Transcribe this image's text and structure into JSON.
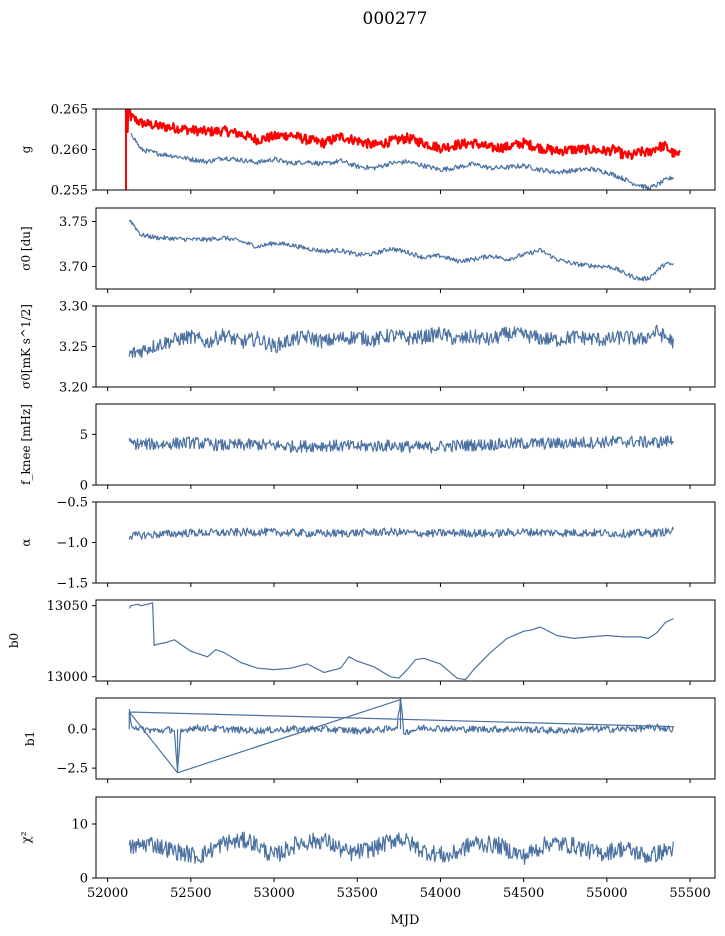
{
  "figure": {
    "title": "000277",
    "xlabel": "MJD"
  },
  "chart_data": [
    {
      "type": "line",
      "ylabel": "g",
      "xlim": [
        51930,
        55650
      ],
      "ylim": [
        0.255,
        0.265
      ],
      "yticks": [
        0.255,
        0.26,
        0.265
      ],
      "ytick_labels": [
        "0.255",
        "0.260",
        "0.265"
      ],
      "series": [
        {
          "color": "#ff0000",
          "x": [
            52110,
            52120,
            52125,
            52140,
            52200,
            52300,
            52400,
            52500,
            52600,
            52700,
            52800,
            52900,
            53000,
            53100,
            53200,
            53300,
            53400,
            53500,
            53600,
            53700,
            53800,
            53900,
            54000,
            54100,
            54200,
            54300,
            54400,
            54500,
            54600,
            54700,
            54800,
            54900,
            55000,
            55050,
            55100,
            55150,
            55200,
            55250,
            55300,
            55350,
            55400,
            55440
          ],
          "y": [
            0.2645,
            0.262,
            0.2655,
            0.264,
            0.2633,
            0.2629,
            0.2627,
            0.2624,
            0.2622,
            0.2623,
            0.2619,
            0.2612,
            0.2616,
            0.2618,
            0.2612,
            0.2608,
            0.2616,
            0.2611,
            0.2605,
            0.261,
            0.2614,
            0.2608,
            0.2602,
            0.2606,
            0.2608,
            0.2602,
            0.2603,
            0.2608,
            0.2602,
            0.2598,
            0.26,
            0.26,
            0.2598,
            0.26,
            0.2593,
            0.2592,
            0.2597,
            0.2596,
            0.2603,
            0.2604,
            0.2595,
            0.2592
          ]
        },
        {
          "color": "#4c72a2",
          "x": [
            52140,
            52200,
            52300,
            52400,
            52500,
            52600,
            52700,
            52800,
            52900,
            53000,
            53100,
            53200,
            53300,
            53400,
            53500,
            53600,
            53700,
            53800,
            53900,
            54000,
            54100,
            54200,
            54300,
            54400,
            54500,
            54600,
            54700,
            54800,
            54900,
            55000,
            55050,
            55100,
            55150,
            55200,
            55250,
            55300,
            55350,
            55400
          ],
          "y": [
            0.2621,
            0.26,
            0.2595,
            0.2592,
            0.2588,
            0.2585,
            0.259,
            0.2587,
            0.2584,
            0.2588,
            0.2583,
            0.2585,
            0.2582,
            0.2586,
            0.2579,
            0.2577,
            0.2583,
            0.2585,
            0.258,
            0.2575,
            0.2578,
            0.2582,
            0.2577,
            0.2578,
            0.258,
            0.2575,
            0.2572,
            0.2574,
            0.2576,
            0.2572,
            0.2568,
            0.2564,
            0.2559,
            0.2556,
            0.2552,
            0.2556,
            0.2562,
            0.2566
          ]
        }
      ]
    },
    {
      "type": "line",
      "ylabel": "σ0 [du]",
      "xlim": [
        51930,
        55650
      ],
      "ylim": [
        3.675,
        3.765
      ],
      "yticks": [
        3.7,
        3.75
      ],
      "ytick_labels": [
        "3.70",
        "3.75"
      ],
      "series": [
        {
          "color": "#4c72a2",
          "x": [
            52130,
            52150,
            52200,
            52300,
            52400,
            52500,
            52600,
            52700,
            52800,
            52900,
            53000,
            53100,
            53200,
            53300,
            53400,
            53500,
            53600,
            53700,
            53800,
            53900,
            54000,
            54100,
            54200,
            54300,
            54400,
            54500,
            54600,
            54700,
            54800,
            54900,
            55000,
            55050,
            55100,
            55150,
            55200,
            55250,
            55300,
            55350,
            55400
          ],
          "y": [
            3.752,
            3.748,
            3.735,
            3.732,
            3.731,
            3.73,
            3.73,
            3.732,
            3.728,
            3.722,
            3.726,
            3.724,
            3.72,
            3.717,
            3.718,
            3.713,
            3.714,
            3.72,
            3.716,
            3.71,
            3.712,
            3.706,
            3.708,
            3.712,
            3.708,
            3.713,
            3.718,
            3.708,
            3.703,
            3.701,
            3.7,
            3.698,
            3.693,
            3.689,
            3.686,
            3.687,
            3.695,
            3.703,
            3.702
          ]
        }
      ]
    },
    {
      "type": "line",
      "ylabel": "σ0[mK s^1/2]",
      "xlim": [
        51930,
        55650
      ],
      "ylim": [
        3.2,
        3.3
      ],
      "yticks": [
        3.2,
        3.25,
        3.3
      ],
      "ytick_labels": [
        "3.20",
        "3.25",
        "3.30"
      ],
      "series": [
        {
          "color": "#4c72a2",
          "x": [
            52130,
            52200,
            52300,
            52400,
            52500,
            52600,
            52700,
            52800,
            52900,
            53000,
            53100,
            53200,
            53300,
            53400,
            53500,
            53600,
            53700,
            53800,
            53900,
            54000,
            54100,
            54200,
            54300,
            54400,
            54500,
            54600,
            54700,
            54800,
            54900,
            55000,
            55100,
            55200,
            55300,
            55400
          ],
          "y": [
            3.24,
            3.245,
            3.252,
            3.258,
            3.262,
            3.255,
            3.265,
            3.255,
            3.26,
            3.25,
            3.258,
            3.262,
            3.256,
            3.26,
            3.262,
            3.258,
            3.264,
            3.26,
            3.262,
            3.266,
            3.258,
            3.262,
            3.258,
            3.266,
            3.264,
            3.26,
            3.258,
            3.262,
            3.26,
            3.258,
            3.262,
            3.258,
            3.268,
            3.256
          ]
        }
      ]
    },
    {
      "type": "line",
      "ylabel": "f_knee [mHz]",
      "xlim": [
        51930,
        55650
      ],
      "ylim": [
        0,
        8
      ],
      "yticks": [
        0,
        5
      ],
      "ytick_labels": [
        "0",
        "5"
      ],
      "series": [
        {
          "color": "#4c72a2",
          "x": [
            52130,
            52300,
            52500,
            52700,
            52900,
            53100,
            53300,
            53500,
            53700,
            53900,
            54100,
            54300,
            54500,
            54700,
            54900,
            55100,
            55300,
            55400
          ],
          "y": [
            4.1,
            4.0,
            4.2,
            3.9,
            4.0,
            3.8,
            3.9,
            3.8,
            3.9,
            3.7,
            3.9,
            4.0,
            4.1,
            4.1,
            4.2,
            4.3,
            4.2,
            4.4
          ]
        }
      ]
    },
    {
      "type": "line",
      "ylabel": "α",
      "xlim": [
        51930,
        55650
      ],
      "ylim": [
        -1.5,
        -0.5
      ],
      "yticks": [
        -1.5,
        -1.0,
        -0.5
      ],
      "ytick_labels": [
        "−1.5",
        "−1.0",
        "−0.5"
      ],
      "series": [
        {
          "color": "#4c72a2",
          "x": [
            52130,
            52300,
            52500,
            52700,
            52900,
            53100,
            53300,
            53500,
            53700,
            53900,
            54100,
            54300,
            54500,
            54700,
            54900,
            55100,
            55300,
            55400
          ],
          "y": [
            -0.92,
            -0.9,
            -0.88,
            -0.88,
            -0.87,
            -0.88,
            -0.89,
            -0.88,
            -0.87,
            -0.89,
            -0.88,
            -0.89,
            -0.87,
            -0.88,
            -0.88,
            -0.89,
            -0.88,
            -0.86
          ]
        }
      ]
    },
    {
      "type": "line",
      "ylabel": "b0",
      "xlim": [
        51930,
        55650
      ],
      "ylim": [
        12997,
        13054
      ],
      "yticks": [
        13000,
        13050
      ],
      "ytick_labels": [
        "13000",
        "13050"
      ],
      "series": [
        {
          "color": "#4c72a2",
          "x": [
            52130,
            52140,
            52180,
            52200,
            52240,
            52270,
            52280,
            52300,
            52350,
            52400,
            52450,
            52500,
            52600,
            52650,
            52700,
            52800,
            52900,
            53000,
            53100,
            53200,
            53300,
            53400,
            53450,
            53500,
            53600,
            53700,
            53750,
            53800,
            53850,
            53900,
            54000,
            54100,
            54150,
            54200,
            54300,
            54400,
            54500,
            54550,
            54600,
            54700,
            54800,
            54900,
            55000,
            55100,
            55200,
            55250,
            55300,
            55350,
            55400
          ],
          "y": [
            13048,
            13050,
            13051,
            13050,
            13051,
            13052,
            13022,
            13023,
            13024,
            13026,
            13022,
            13018,
            13014,
            13019,
            13017,
            13010,
            13006,
            13005,
            13006,
            13009,
            13003,
            13006,
            13014,
            13011,
            13007,
            13000,
            12999,
            13005,
            13012,
            13013,
            13009,
            12999,
            12998,
            13005,
            13017,
            13027,
            13032,
            13033,
            13035,
            13029,
            13027,
            13028,
            13029,
            13028,
            13028,
            13027,
            13031,
            13038,
            13041
          ]
        }
      ]
    },
    {
      "type": "line",
      "ylabel": "b1",
      "xlim": [
        51930,
        55650
      ],
      "ylim": [
        -3.2,
        2.0
      ],
      "yticks": [
        -2.5,
        0.0
      ],
      "ytick_labels": [
        "−2.5",
        "0.0"
      ],
      "series": [
        {
          "color": "#4c72a2",
          "x": [
            52130,
            52140,
            52200,
            52300,
            52400,
            52420,
            52440,
            52500,
            52700,
            52900,
            53100,
            53300,
            53500,
            53700,
            53740,
            53760,
            53780,
            53900,
            54100,
            54300,
            54500,
            54700,
            54900,
            55100,
            55300,
            55400
          ],
          "y": [
            1.1,
            0.3,
            0.0,
            -0.1,
            0.0,
            -2.8,
            -0.2,
            0.1,
            0.0,
            -0.1,
            0.0,
            0.0,
            -0.1,
            0.0,
            0.2,
            1.9,
            -0.2,
            0.1,
            0.0,
            0.0,
            0.0,
            -0.1,
            0.0,
            0.0,
            0.1,
            0.0
          ]
        }
      ]
    },
    {
      "type": "line",
      "ylabel": "χ²",
      "xlim": [
        51930,
        55650
      ],
      "ylim": [
        0,
        15
      ],
      "yticks": [
        0,
        10
      ],
      "ytick_labels": [
        "0",
        "10"
      ],
      "series": [
        {
          "color": "#4c72a2",
          "x": [
            52130,
            52250,
            52400,
            52550,
            52700,
            52850,
            53000,
            53150,
            53300,
            53450,
            53600,
            53750,
            53900,
            54050,
            54200,
            54350,
            54500,
            54650,
            54800,
            54950,
            55100,
            55250,
            55400
          ],
          "y": [
            5.5,
            6.5,
            5.0,
            4.0,
            6.5,
            7.0,
            4.0,
            6.5,
            7.0,
            4.5,
            5.5,
            7.5,
            5.0,
            4.0,
            6.5,
            6.0,
            4.0,
            6.5,
            6.0,
            4.5,
            5.5,
            4.0,
            5.5
          ]
        }
      ]
    }
  ],
  "xaxis": {
    "ticks": [
      52000,
      52500,
      53000,
      53500,
      54000,
      54500,
      55000,
      55500
    ],
    "tick_labels": [
      "52000",
      "52500",
      "53000",
      "53500",
      "54000",
      "54500",
      "55000",
      "55500"
    ]
  }
}
